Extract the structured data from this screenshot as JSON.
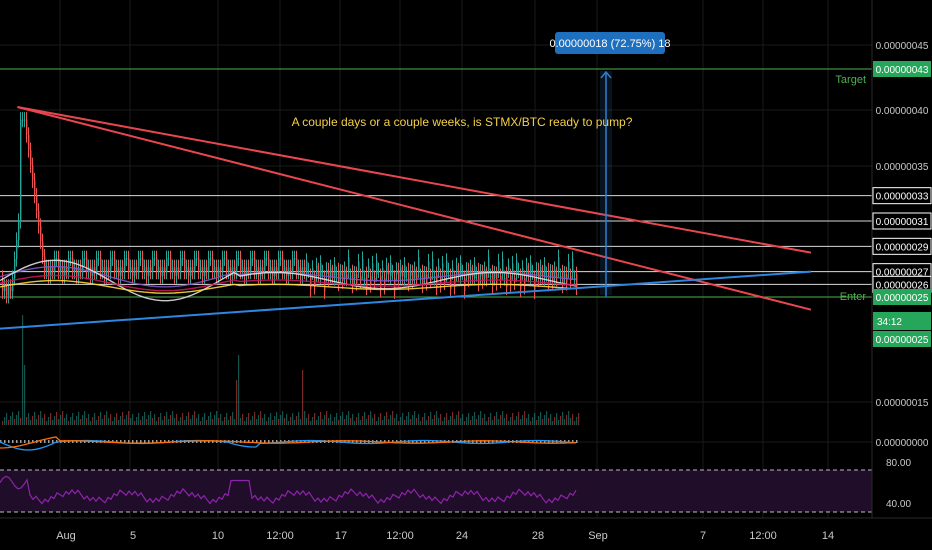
{
  "chart_data": {
    "type": "candlestick",
    "symbol": "STMX/BTC",
    "annotation": "A couple days or a couple weeks, is STMX/BTC ready to pump?",
    "measure_label": "0.00000018 (72.75%) 18",
    "x_ticks": [
      "Aug",
      "5",
      "10",
      "12:00",
      "17",
      "12:00",
      "24",
      "28",
      "Sep",
      "7",
      "12:00",
      "14"
    ],
    "price_axis_ticks": [
      "0.00000045",
      "0.00000040",
      "0.00000035",
      "0.00000015",
      "0.00000000"
    ],
    "levels": [
      {
        "label": "0.00000043",
        "value": 43,
        "kind": "target",
        "tag": "Target"
      },
      {
        "label": "0.00000033",
        "value": 33,
        "kind": "resistance"
      },
      {
        "label": "0.00000031",
        "value": 31,
        "kind": "resistance"
      },
      {
        "label": "0.00000029",
        "value": 29,
        "kind": "resistance"
      },
      {
        "label": "0.00000027",
        "value": 27,
        "kind": "resistance"
      },
      {
        "label": "0.00000026",
        "value": 26,
        "kind": "resistance"
      },
      {
        "label": "0.00000025",
        "value": 25,
        "kind": "enter",
        "tag": "Enter"
      }
    ],
    "current_price": {
      "label": "0.00000025",
      "countdown": "34:12"
    },
    "rsi": {
      "ticks": [
        "80.00",
        "40.00"
      ],
      "upper": 70,
      "lower": 30
    },
    "trendlines": [
      {
        "name": "upper-resistance-1",
        "from": [
          0.02,
          40
        ],
        "to": [
          0.93,
          24
        ]
      },
      {
        "name": "upper-resistance-2",
        "from": [
          0.02,
          40
        ],
        "to": [
          0.93,
          28.5
        ]
      },
      {
        "name": "support",
        "from": [
          0.0,
          22.5
        ],
        "to": [
          0.93,
          27
        ]
      }
    ]
  },
  "colors": {
    "background": "#000000",
    "grid": "#1a1a1a",
    "level_line": "#d9d9d9",
    "target_line": "#4caf50",
    "enter_line": "#4caf50",
    "resistance_trend": "#e8474f",
    "support_trend": "#2e86de",
    "measure_arrow": "#2f7fcf",
    "measure_box": "#1f6fbf",
    "annotation_text": "#f5d046",
    "candle_up": "#26a69a",
    "candle_down": "#ef5350",
    "label_box_green": "#26a65b",
    "rsi_line": "#8e24aa",
    "rsi_band": "#1f0d2a"
  }
}
